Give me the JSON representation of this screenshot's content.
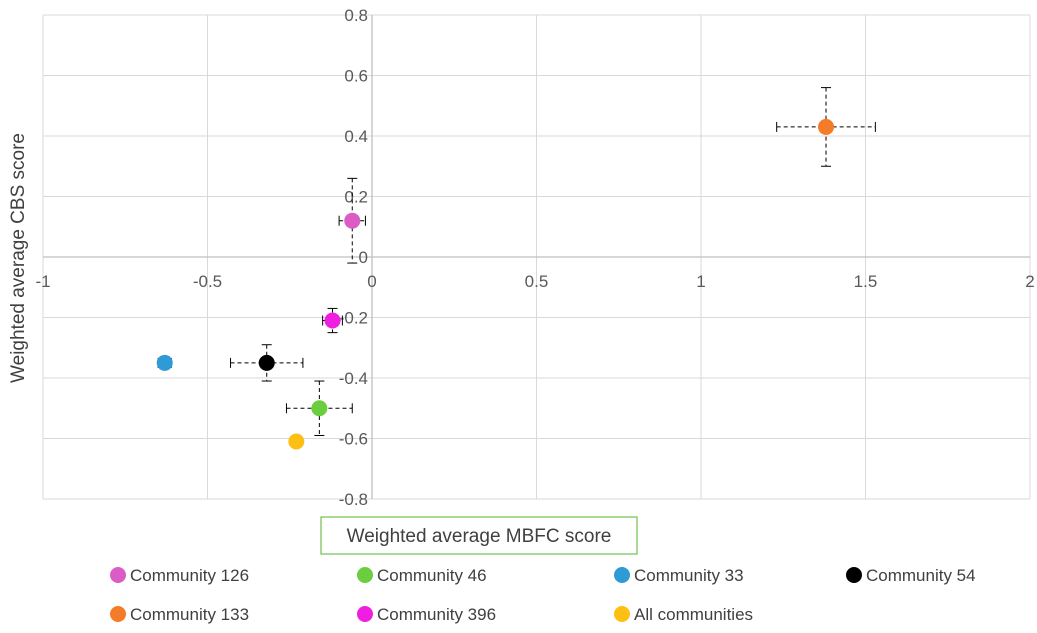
{
  "chart_data": {
    "type": "scatter",
    "title": "",
    "xlabel": "Weighted average MBFC score",
    "ylabel": "Weighted average CBS score",
    "xlim": [
      -1,
      2
    ],
    "ylim": [
      -0.8,
      0.8
    ],
    "x_ticks": [
      -1,
      -0.5,
      0,
      0.5,
      1,
      1.5,
      2
    ],
    "x_tick_labels": [
      "-1",
      "-0.5",
      "0",
      "0.5",
      "1",
      "1.5",
      "2"
    ],
    "y_ticks": [
      0.8,
      0.6,
      0.4,
      0.2,
      0,
      -0.2,
      -0.4,
      -0.6,
      -0.8
    ],
    "y_tick_labels": [
      "0.8",
      "0.6",
      "0.4",
      "0.2",
      "0",
      "-0.2",
      "-0.4",
      "-0.6",
      "-0.8"
    ],
    "grid": true,
    "legend_position": "bottom",
    "series": [
      {
        "name": "Community 126",
        "color": "#dc5cc6",
        "x": -0.06,
        "y": 0.12,
        "x_err": 0.04,
        "y_err": 0.14
      },
      {
        "name": "Community 46",
        "color": "#6ccd3f",
        "x": -0.16,
        "y": -0.5,
        "x_err": 0.1,
        "y_err": 0.09
      },
      {
        "name": "Community 33",
        "color": "#2e9ad6",
        "x": -0.63,
        "y": -0.35,
        "x_err": 0.02,
        "y_err": 0.02
      },
      {
        "name": "Community 54",
        "color": "#000000",
        "x": -0.32,
        "y": -0.35,
        "x_err": 0.11,
        "y_err": 0.06
      },
      {
        "name": "Community 133",
        "color": "#f47b28",
        "x": 1.38,
        "y": 0.43,
        "x_err": 0.15,
        "y_err": 0.13
      },
      {
        "name": "Community 396",
        "color": "#f01ee0",
        "x": -0.12,
        "y": -0.21,
        "x_err": 0.03,
        "y_err": 0.04
      },
      {
        "name": "All communities",
        "color": "#fdbf14",
        "x": -0.23,
        "y": -0.61,
        "x_err": 0,
        "y_err": 0
      }
    ]
  }
}
